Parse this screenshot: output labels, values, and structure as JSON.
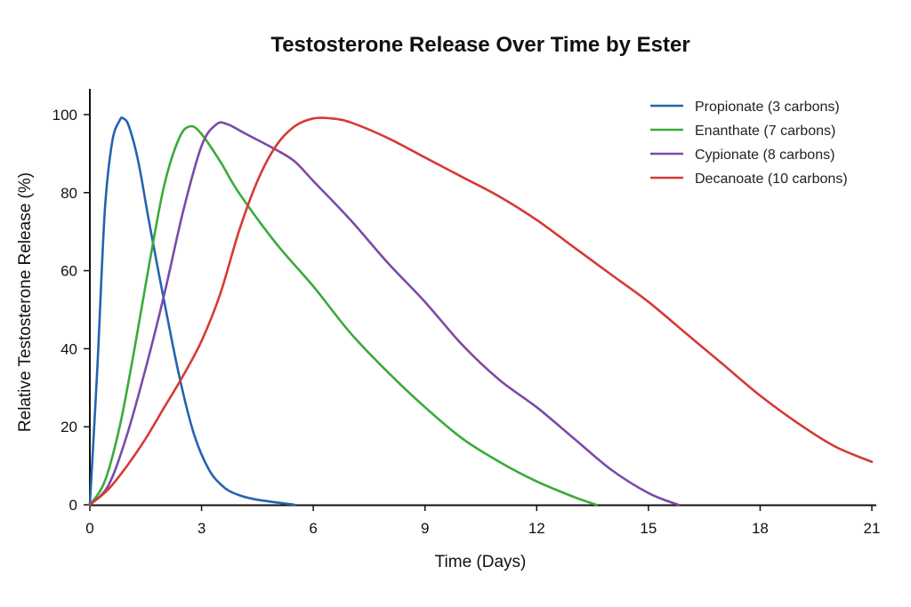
{
  "chart_data": {
    "type": "line",
    "title": "Testosterone Release Over Time by Ester",
    "xlabel": "Time (Days)",
    "ylabel": "Relative Testosterone Release (%)",
    "xlim": [
      0,
      21
    ],
    "ylim": [
      0,
      105
    ],
    "xticks": [
      0,
      3,
      6,
      9,
      12,
      15,
      18,
      21
    ],
    "yticks": [
      0,
      20,
      40,
      60,
      80,
      100
    ],
    "grid": false,
    "legend_position": "top-right",
    "series": [
      {
        "name": "Propionate (3 carbons)",
        "color": "#2463b0",
        "points": [
          [
            0,
            0
          ],
          [
            0.2,
            35
          ],
          [
            0.4,
            75
          ],
          [
            0.6,
            93
          ],
          [
            0.8,
            98.5
          ],
          [
            0.9,
            99
          ],
          [
            1.05,
            97
          ],
          [
            1.3,
            88
          ],
          [
            1.6,
            72
          ],
          [
            2.0,
            52
          ],
          [
            2.4,
            33
          ],
          [
            2.8,
            18
          ],
          [
            3.2,
            9
          ],
          [
            3.6,
            4.5
          ],
          [
            4.0,
            2.5
          ],
          [
            4.5,
            1.3
          ],
          [
            5.5,
            0
          ]
        ]
      },
      {
        "name": "Enanthate (7 carbons)",
        "color": "#3aaa3a",
        "points": [
          [
            0,
            0
          ],
          [
            0.4,
            6
          ],
          [
            0.8,
            20
          ],
          [
            1.2,
            40
          ],
          [
            1.6,
            62
          ],
          [
            2.0,
            82
          ],
          [
            2.4,
            94
          ],
          [
            2.7,
            97
          ],
          [
            3.0,
            95
          ],
          [
            3.5,
            88
          ],
          [
            4.0,
            80
          ],
          [
            5.0,
            67
          ],
          [
            6.0,
            56
          ],
          [
            7.0,
            44
          ],
          [
            8.0,
            34
          ],
          [
            9.0,
            25
          ],
          [
            10.0,
            17
          ],
          [
            11.0,
            11
          ],
          [
            12.0,
            6
          ],
          [
            13.0,
            2
          ],
          [
            13.6,
            0
          ]
        ]
      },
      {
        "name": "Cypionate (8 carbons)",
        "color": "#7b4aa8",
        "points": [
          [
            0,
            0
          ],
          [
            0.5,
            5
          ],
          [
            1.0,
            18
          ],
          [
            1.5,
            35
          ],
          [
            2.0,
            54
          ],
          [
            2.5,
            75
          ],
          [
            3.0,
            92
          ],
          [
            3.4,
            97.5
          ],
          [
            3.7,
            97.5
          ],
          [
            4.2,
            95
          ],
          [
            5.0,
            91
          ],
          [
            5.5,
            88
          ],
          [
            6.0,
            83
          ],
          [
            7.0,
            73
          ],
          [
            8.0,
            62
          ],
          [
            9.0,
            52
          ],
          [
            10.0,
            41
          ],
          [
            11.0,
            32
          ],
          [
            12.0,
            25
          ],
          [
            13.0,
            17
          ],
          [
            14.0,
            9
          ],
          [
            15.0,
            3
          ],
          [
            15.8,
            0
          ]
        ]
      },
      {
        "name": "Decanoate (10 carbons)",
        "color": "#d63a34",
        "points": [
          [
            0,
            0
          ],
          [
            0.5,
            4
          ],
          [
            1.0,
            10
          ],
          [
            1.5,
            17
          ],
          [
            2.0,
            25
          ],
          [
            2.5,
            33
          ],
          [
            3.0,
            42
          ],
          [
            3.5,
            54
          ],
          [
            4.0,
            70
          ],
          [
            4.5,
            83
          ],
          [
            5.0,
            92
          ],
          [
            5.5,
            97
          ],
          [
            6.0,
            99
          ],
          [
            6.5,
            99
          ],
          [
            7.0,
            98
          ],
          [
            8.0,
            94
          ],
          [
            9.0,
            89
          ],
          [
            10.0,
            84
          ],
          [
            11.0,
            79
          ],
          [
            12.0,
            73
          ],
          [
            13.0,
            66
          ],
          [
            14.0,
            59
          ],
          [
            15.0,
            52
          ],
          [
            16.0,
            44
          ],
          [
            17.0,
            36
          ],
          [
            18.0,
            28
          ],
          [
            19.0,
            21
          ],
          [
            20.0,
            15
          ],
          [
            21.0,
            11
          ]
        ]
      }
    ]
  }
}
